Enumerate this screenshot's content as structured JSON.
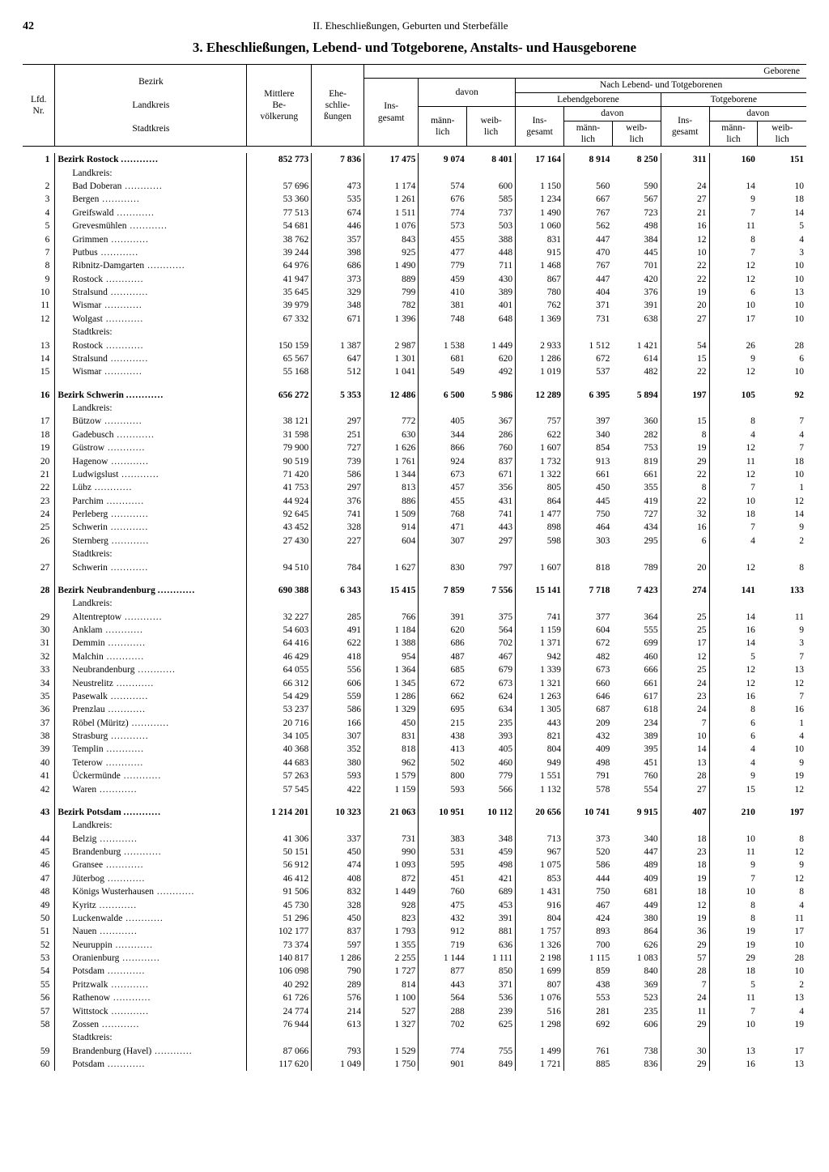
{
  "page_number": "42",
  "running_head": "II. Eheschließungen, Geburten und Sterbefälle",
  "title": "3. Eheschließungen, Lebend- und Totgeborene, Anstalts- und Hausgeborene",
  "headers": {
    "lfd": "Lfd.\nNr.",
    "bezirk": "Bezirk",
    "landkreis": "Landkreis",
    "stadtkreis": "Stadtkreis",
    "pop": "Mittlere\nBe-\nvölkerung",
    "ehe": "Ehe-\nschlie-\nßungen",
    "geborene": "Geborene",
    "ins": "Ins-\ngesamt",
    "davon": "davon",
    "nach": "Nach Lebend- und Totgeborenen",
    "lebend": "Lebendgeborene",
    "tot": "Totgeborene",
    "mann": "männ-\nlich",
    "weib": "weib-\nlich"
  },
  "labels": {
    "landkreis": "Landkreis:",
    "stadtkreis": "Stadtkreis:"
  },
  "rows": [
    {
      "n": "1",
      "name": "Bezirk Rostock",
      "type": "bezirk",
      "v": [
        "852 773",
        "7 836",
        "17 475",
        "9 074",
        "8 401",
        "17 164",
        "8 914",
        "8 250",
        "311",
        "160",
        "151"
      ]
    },
    {
      "type": "label",
      "name": "Landkreis:"
    },
    {
      "n": "2",
      "name": "Bad Doberan",
      "type": "sub",
      "v": [
        "57 696",
        "473",
        "1 174",
        "574",
        "600",
        "1 150",
        "560",
        "590",
        "24",
        "14",
        "10"
      ]
    },
    {
      "n": "3",
      "name": "Bergen",
      "type": "sub",
      "v": [
        "53 360",
        "535",
        "1 261",
        "676",
        "585",
        "1 234",
        "667",
        "567",
        "27",
        "9",
        "18"
      ]
    },
    {
      "n": "4",
      "name": "Greifswald",
      "type": "sub",
      "v": [
        "77 513",
        "674",
        "1 511",
        "774",
        "737",
        "1 490",
        "767",
        "723",
        "21",
        "7",
        "14"
      ]
    },
    {
      "n": "5",
      "name": "Grevesmühlen",
      "type": "sub",
      "v": [
        "54 681",
        "446",
        "1 076",
        "573",
        "503",
        "1 060",
        "562",
        "498",
        "16",
        "11",
        "5"
      ]
    },
    {
      "n": "6",
      "name": "Grimmen",
      "type": "sub",
      "v": [
        "38 762",
        "357",
        "843",
        "455",
        "388",
        "831",
        "447",
        "384",
        "12",
        "8",
        "4"
      ]
    },
    {
      "n": "7",
      "name": "Putbus",
      "type": "sub",
      "v": [
        "39 244",
        "398",
        "925",
        "477",
        "448",
        "915",
        "470",
        "445",
        "10",
        "7",
        "3"
      ]
    },
    {
      "n": "8",
      "name": "Ribnitz-Damgarten",
      "type": "sub",
      "v": [
        "64 976",
        "686",
        "1 490",
        "779",
        "711",
        "1 468",
        "767",
        "701",
        "22",
        "12",
        "10"
      ]
    },
    {
      "n": "9",
      "name": "Rostock",
      "type": "sub",
      "v": [
        "41 947",
        "373",
        "889",
        "459",
        "430",
        "867",
        "447",
        "420",
        "22",
        "12",
        "10"
      ]
    },
    {
      "n": "10",
      "name": "Stralsund",
      "type": "sub",
      "v": [
        "35 645",
        "329",
        "799",
        "410",
        "389",
        "780",
        "404",
        "376",
        "19",
        "6",
        "13"
      ]
    },
    {
      "n": "11",
      "name": "Wismar",
      "type": "sub",
      "v": [
        "39 979",
        "348",
        "782",
        "381",
        "401",
        "762",
        "371",
        "391",
        "20",
        "10",
        "10"
      ]
    },
    {
      "n": "12",
      "name": "Wolgast",
      "type": "sub",
      "v": [
        "67 332",
        "671",
        "1 396",
        "748",
        "648",
        "1 369",
        "731",
        "638",
        "27",
        "17",
        "10"
      ]
    },
    {
      "type": "label",
      "name": "Stadtkreis:"
    },
    {
      "n": "13",
      "name": "Rostock",
      "type": "sub",
      "v": [
        "150 159",
        "1 387",
        "2 987",
        "1 538",
        "1 449",
        "2 933",
        "1 512",
        "1 421",
        "54",
        "26",
        "28"
      ]
    },
    {
      "n": "14",
      "name": "Stralsund",
      "type": "sub",
      "v": [
        "65 567",
        "647",
        "1 301",
        "681",
        "620",
        "1 286",
        "672",
        "614",
        "15",
        "9",
        "6"
      ]
    },
    {
      "n": "15",
      "name": "Wismar",
      "type": "sub",
      "v": [
        "55 168",
        "512",
        "1 041",
        "549",
        "492",
        "1 019",
        "537",
        "482",
        "22",
        "12",
        "10"
      ]
    },
    {
      "type": "gap"
    },
    {
      "n": "16",
      "name": "Bezirk Schwerin",
      "type": "bezirk",
      "v": [
        "656 272",
        "5 353",
        "12 486",
        "6 500",
        "5 986",
        "12 289",
        "6 395",
        "5 894",
        "197",
        "105",
        "92"
      ]
    },
    {
      "type": "label",
      "name": "Landkreis:"
    },
    {
      "n": "17",
      "name": "Bützow",
      "type": "sub",
      "v": [
        "38 121",
        "297",
        "772",
        "405",
        "367",
        "757",
        "397",
        "360",
        "15",
        "8",
        "7"
      ]
    },
    {
      "n": "18",
      "name": "Gadebusch",
      "type": "sub",
      "v": [
        "31 598",
        "251",
        "630",
        "344",
        "286",
        "622",
        "340",
        "282",
        "8",
        "4",
        "4"
      ]
    },
    {
      "n": "19",
      "name": "Güstrow",
      "type": "sub",
      "v": [
        "79 900",
        "727",
        "1 626",
        "866",
        "760",
        "1 607",
        "854",
        "753",
        "19",
        "12",
        "7"
      ]
    },
    {
      "n": "20",
      "name": "Hagenow",
      "type": "sub",
      "v": [
        "90 519",
        "739",
        "1 761",
        "924",
        "837",
        "1 732",
        "913",
        "819",
        "29",
        "11",
        "18"
      ]
    },
    {
      "n": "21",
      "name": "Ludwigslust",
      "type": "sub",
      "v": [
        "71 420",
        "586",
        "1 344",
        "673",
        "671",
        "1 322",
        "661",
        "661",
        "22",
        "12",
        "10"
      ]
    },
    {
      "n": "22",
      "name": "Lübz",
      "type": "sub",
      "v": [
        "41 753",
        "297",
        "813",
        "457",
        "356",
        "805",
        "450",
        "355",
        "8",
        "7",
        "1"
      ]
    },
    {
      "n": "23",
      "name": "Parchim",
      "type": "sub",
      "v": [
        "44 924",
        "376",
        "886",
        "455",
        "431",
        "864",
        "445",
        "419",
        "22",
        "10",
        "12"
      ]
    },
    {
      "n": "24",
      "name": "Perleberg",
      "type": "sub",
      "v": [
        "92 645",
        "741",
        "1 509",
        "768",
        "741",
        "1 477",
        "750",
        "727",
        "32",
        "18",
        "14"
      ]
    },
    {
      "n": "25",
      "name": "Schwerin",
      "type": "sub",
      "v": [
        "43 452",
        "328",
        "914",
        "471",
        "443",
        "898",
        "464",
        "434",
        "16",
        "7",
        "9"
      ]
    },
    {
      "n": "26",
      "name": "Sternberg",
      "type": "sub",
      "v": [
        "27 430",
        "227",
        "604",
        "307",
        "297",
        "598",
        "303",
        "295",
        "6",
        "4",
        "2"
      ]
    },
    {
      "type": "label",
      "name": "Stadtkreis:"
    },
    {
      "n": "27",
      "name": "Schwerin",
      "type": "sub",
      "v": [
        "94 510",
        "784",
        "1 627",
        "830",
        "797",
        "1 607",
        "818",
        "789",
        "20",
        "12",
        "8"
      ]
    },
    {
      "type": "gap"
    },
    {
      "n": "28",
      "name": "Bezirk Neubrandenburg",
      "type": "bezirk",
      "v": [
        "690 388",
        "6 343",
        "15 415",
        "7 859",
        "7 556",
        "15 141",
        "7 718",
        "7 423",
        "274",
        "141",
        "133"
      ]
    },
    {
      "type": "label",
      "name": "Landkreis:"
    },
    {
      "n": "29",
      "name": "Altentreptow",
      "type": "sub",
      "v": [
        "32 227",
        "285",
        "766",
        "391",
        "375",
        "741",
        "377",
        "364",
        "25",
        "14",
        "11"
      ]
    },
    {
      "n": "30",
      "name": "Anklam",
      "type": "sub",
      "v": [
        "54 603",
        "491",
        "1 184",
        "620",
        "564",
        "1 159",
        "604",
        "555",
        "25",
        "16",
        "9"
      ]
    },
    {
      "n": "31",
      "name": "Demmin",
      "type": "sub",
      "v": [
        "64 416",
        "622",
        "1 388",
        "686",
        "702",
        "1 371",
        "672",
        "699",
        "17",
        "14",
        "3"
      ]
    },
    {
      "n": "32",
      "name": "Malchin",
      "type": "sub",
      "v": [
        "46 429",
        "418",
        "954",
        "487",
        "467",
        "942",
        "482",
        "460",
        "12",
        "5",
        "7"
      ]
    },
    {
      "n": "33",
      "name": "Neubrandenburg",
      "type": "sub",
      "v": [
        "64 055",
        "556",
        "1 364",
        "685",
        "679",
        "1 339",
        "673",
        "666",
        "25",
        "12",
        "13"
      ]
    },
    {
      "n": "34",
      "name": "Neustrelitz",
      "type": "sub",
      "v": [
        "66 312",
        "606",
        "1 345",
        "672",
        "673",
        "1 321",
        "660",
        "661",
        "24",
        "12",
        "12"
      ]
    },
    {
      "n": "35",
      "name": "Pasewalk",
      "type": "sub",
      "v": [
        "54 429",
        "559",
        "1 286",
        "662",
        "624",
        "1 263",
        "646",
        "617",
        "23",
        "16",
        "7"
      ]
    },
    {
      "n": "36",
      "name": "Prenzlau",
      "type": "sub",
      "v": [
        "53 237",
        "586",
        "1 329",
        "695",
        "634",
        "1 305",
        "687",
        "618",
        "24",
        "8",
        "16"
      ]
    },
    {
      "n": "37",
      "name": "Röbel (Müritz)",
      "type": "sub",
      "v": [
        "20 716",
        "166",
        "450",
        "215",
        "235",
        "443",
        "209",
        "234",
        "7",
        "6",
        "1"
      ]
    },
    {
      "n": "38",
      "name": "Strasburg",
      "type": "sub",
      "v": [
        "34 105",
        "307",
        "831",
        "438",
        "393",
        "821",
        "432",
        "389",
        "10",
        "6",
        "4"
      ]
    },
    {
      "n": "39",
      "name": "Templin",
      "type": "sub",
      "v": [
        "40 368",
        "352",
        "818",
        "413",
        "405",
        "804",
        "409",
        "395",
        "14",
        "4",
        "10"
      ]
    },
    {
      "n": "40",
      "name": "Teterow",
      "type": "sub",
      "v": [
        "44 683",
        "380",
        "962",
        "502",
        "460",
        "949",
        "498",
        "451",
        "13",
        "4",
        "9"
      ]
    },
    {
      "n": "41",
      "name": "Ückermünde",
      "type": "sub",
      "v": [
        "57 263",
        "593",
        "1 579",
        "800",
        "779",
        "1 551",
        "791",
        "760",
        "28",
        "9",
        "19"
      ]
    },
    {
      "n": "42",
      "name": "Waren",
      "type": "sub",
      "v": [
        "57 545",
        "422",
        "1 159",
        "593",
        "566",
        "1 132",
        "578",
        "554",
        "27",
        "15",
        "12"
      ]
    },
    {
      "type": "gap"
    },
    {
      "n": "43",
      "name": "Bezirk Potsdam",
      "type": "bezirk",
      "v": [
        "1 214 201",
        "10 323",
        "21 063",
        "10 951",
        "10 112",
        "20 656",
        "10 741",
        "9 915",
        "407",
        "210",
        "197"
      ]
    },
    {
      "type": "label",
      "name": "Landkreis:"
    },
    {
      "n": "44",
      "name": "Belzig",
      "type": "sub",
      "v": [
        "41 306",
        "337",
        "731",
        "383",
        "348",
        "713",
        "373",
        "340",
        "18",
        "10",
        "8"
      ]
    },
    {
      "n": "45",
      "name": "Brandenburg",
      "type": "sub",
      "v": [
        "50 151",
        "450",
        "990",
        "531",
        "459",
        "967",
        "520",
        "447",
        "23",
        "11",
        "12"
      ]
    },
    {
      "n": "46",
      "name": "Gransee",
      "type": "sub",
      "v": [
        "56 912",
        "474",
        "1 093",
        "595",
        "498",
        "1 075",
        "586",
        "489",
        "18",
        "9",
        "9"
      ]
    },
    {
      "n": "47",
      "name": "Jüterbog",
      "type": "sub",
      "v": [
        "46 412",
        "408",
        "872",
        "451",
        "421",
        "853",
        "444",
        "409",
        "19",
        "7",
        "12"
      ]
    },
    {
      "n": "48",
      "name": "Königs Wusterhausen",
      "type": "sub",
      "v": [
        "91 506",
        "832",
        "1 449",
        "760",
        "689",
        "1 431",
        "750",
        "681",
        "18",
        "10",
        "8"
      ]
    },
    {
      "n": "49",
      "name": "Kyritz",
      "type": "sub",
      "v": [
        "45 730",
        "328",
        "928",
        "475",
        "453",
        "916",
        "467",
        "449",
        "12",
        "8",
        "4"
      ]
    },
    {
      "n": "50",
      "name": "Luckenwalde",
      "type": "sub",
      "v": [
        "51 296",
        "450",
        "823",
        "432",
        "391",
        "804",
        "424",
        "380",
        "19",
        "8",
        "11"
      ]
    },
    {
      "n": "51",
      "name": "Nauen",
      "type": "sub",
      "v": [
        "102 177",
        "837",
        "1 793",
        "912",
        "881",
        "1 757",
        "893",
        "864",
        "36",
        "19",
        "17"
      ]
    },
    {
      "n": "52",
      "name": "Neuruppin",
      "type": "sub",
      "v": [
        "73 374",
        "597",
        "1 355",
        "719",
        "636",
        "1 326",
        "700",
        "626",
        "29",
        "19",
        "10"
      ]
    },
    {
      "n": "53",
      "name": "Oranienburg",
      "type": "sub",
      "v": [
        "140 817",
        "1 286",
        "2 255",
        "1 144",
        "1 111",
        "2 198",
        "1 115",
        "1 083",
        "57",
        "29",
        "28"
      ]
    },
    {
      "n": "54",
      "name": "Potsdam",
      "type": "sub",
      "v": [
        "106 098",
        "790",
        "1 727",
        "877",
        "850",
        "1 699",
        "859",
        "840",
        "28",
        "18",
        "10"
      ]
    },
    {
      "n": "55",
      "name": "Pritzwalk",
      "type": "sub",
      "v": [
        "40 292",
        "289",
        "814",
        "443",
        "371",
        "807",
        "438",
        "369",
        "7",
        "5",
        "2"
      ]
    },
    {
      "n": "56",
      "name": "Rathenow",
      "type": "sub",
      "v": [
        "61 726",
        "576",
        "1 100",
        "564",
        "536",
        "1 076",
        "553",
        "523",
        "24",
        "11",
        "13"
      ]
    },
    {
      "n": "57",
      "name": "Wittstock",
      "type": "sub",
      "v": [
        "24 774",
        "214",
        "527",
        "288",
        "239",
        "516",
        "281",
        "235",
        "11",
        "7",
        "4"
      ]
    },
    {
      "n": "58",
      "name": "Zossen",
      "type": "sub",
      "v": [
        "76 944",
        "613",
        "1 327",
        "702",
        "625",
        "1 298",
        "692",
        "606",
        "29",
        "10",
        "19"
      ]
    },
    {
      "type": "label",
      "name": "Stadtkreis:"
    },
    {
      "n": "59",
      "name": "Brandenburg (Havel)",
      "type": "sub",
      "v": [
        "87 066",
        "793",
        "1 529",
        "774",
        "755",
        "1 499",
        "761",
        "738",
        "30",
        "13",
        "17"
      ]
    },
    {
      "n": "60",
      "name": "Potsdam",
      "type": "sub",
      "v": [
        "117 620",
        "1 049",
        "1 750",
        "901",
        "849",
        "1 721",
        "885",
        "836",
        "29",
        "16",
        "13"
      ]
    }
  ]
}
